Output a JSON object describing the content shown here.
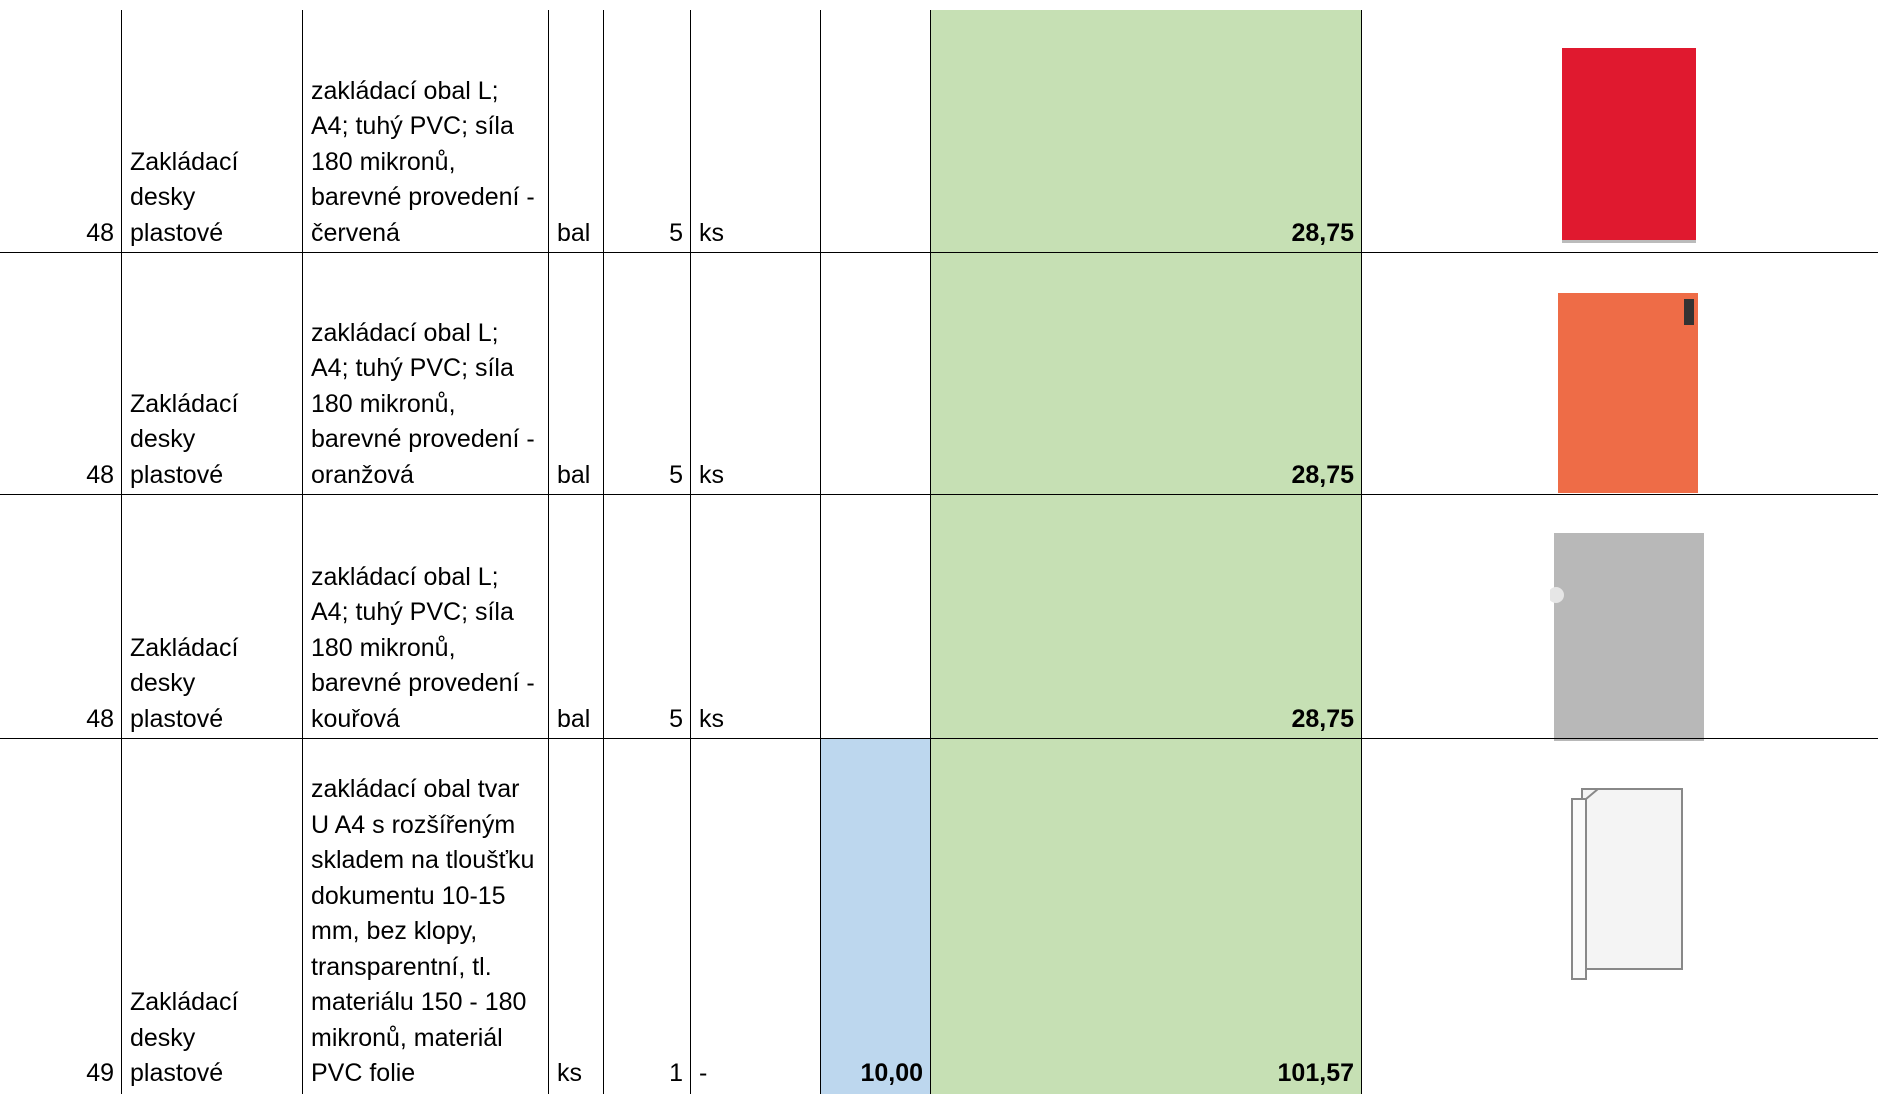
{
  "table": {
    "rows": [
      {
        "no": "48",
        "name": "Zakládací desky plastové",
        "desc": "zakládací obal L; A4; tuhý PVC; síla 180 mikronů, barevné provedení - červená",
        "unit": "bal",
        "qty": "5",
        "unit2": "ks",
        "total": "28,75"
      },
      {
        "no": "48",
        "name": "Zakládací desky plastové",
        "desc": "zakládací obal L; A4; tuhý PVC; síla 180 mikronů, barevné provedení - oranžová",
        "unit": "bal",
        "qty": "5",
        "unit2": "ks",
        "total": "28,75"
      },
      {
        "no": "48",
        "name": "Zakládací desky plastové",
        "desc": "zakládací obal L; A4; tuhý PVC; síla 180 mikronů, barevné provedení - kouřová",
        "unit": "bal",
        "qty": "5",
        "unit2": "ks",
        "total": "28,75"
      },
      {
        "no": "49",
        "name": "Zakládací desky plastové",
        "desc": "zakládací obal tvar U A4 s rozšířeným skladem na tloušťku dokumentu 10-15 mm, bez klopy, transparentní, tl. materiálu 150 - 180 mikronů, materiál PVC folie",
        "unit": "ks",
        "qty": "1",
        "unit2": "-",
        "price": "10,00",
        "total": "101,57"
      }
    ]
  }
}
